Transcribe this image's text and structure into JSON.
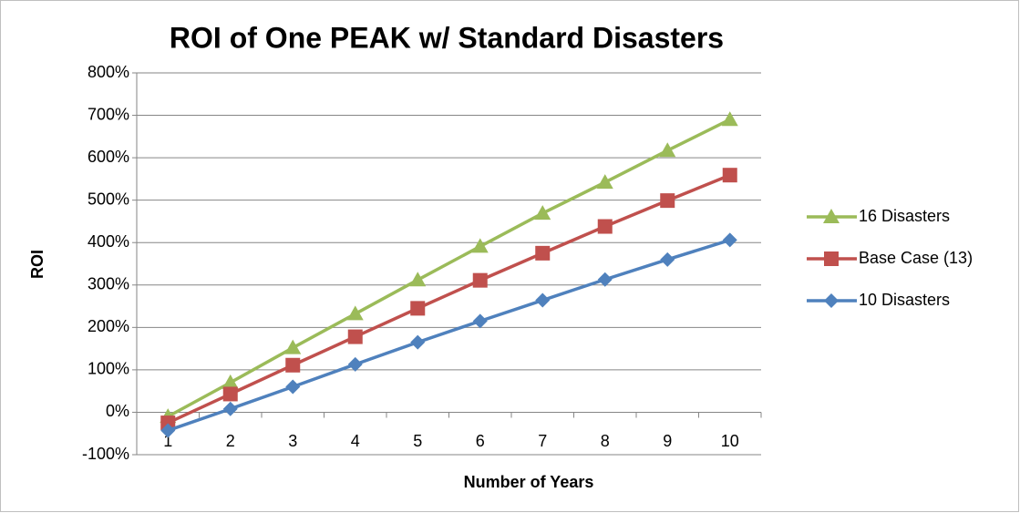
{
  "chart_data": {
    "type": "line",
    "title": "ROI of One PEAK w/ Standard Disasters",
    "xlabel": "Number of Years",
    "ylabel": "ROI",
    "categories": [
      "1",
      "2",
      "3",
      "4",
      "5",
      "6",
      "7",
      "8",
      "9",
      "10"
    ],
    "series": [
      {
        "name": "16 Disasters",
        "color": "#9bbb59",
        "marker": "triangle",
        "values": [
          -10,
          70,
          152,
          232,
          312,
          391,
          469,
          542,
          617,
          690
        ]
      },
      {
        "name": "Base Case (13)",
        "color": "#c0504d",
        "marker": "square",
        "values": [
          -25,
          43,
          111,
          178,
          245,
          311,
          375,
          438,
          499,
          559
        ]
      },
      {
        "name": "10 Disasters",
        "color": "#4f81bd",
        "marker": "diamond",
        "values": [
          -43,
          8,
          60,
          113,
          165,
          215,
          264,
          313,
          360,
          406
        ]
      }
    ],
    "ylim": [
      -100,
      800
    ],
    "yticks": [
      {
        "value": -100,
        "label": "-100%"
      },
      {
        "value": 0,
        "label": "0%"
      },
      {
        "value": 100,
        "label": "100%"
      },
      {
        "value": 200,
        "label": "200%"
      },
      {
        "value": 300,
        "label": "300%"
      },
      {
        "value": 400,
        "label": "400%"
      },
      {
        "value": 500,
        "label": "500%"
      },
      {
        "value": 600,
        "label": "600%"
      },
      {
        "value": 700,
        "label": "700%"
      },
      {
        "value": 800,
        "label": "800%"
      }
    ],
    "grid": true,
    "legend": "right"
  }
}
